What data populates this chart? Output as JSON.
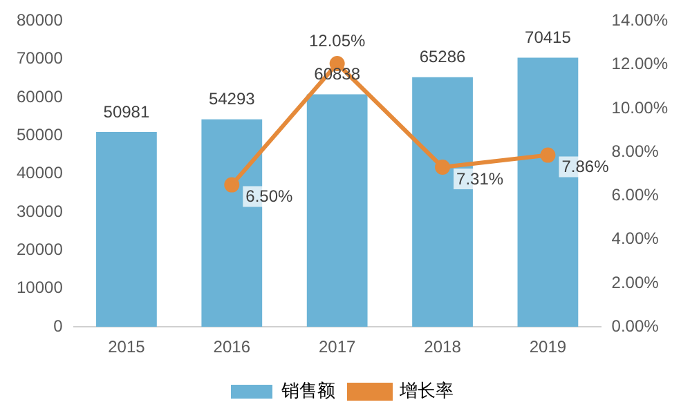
{
  "chart_data": {
    "type": "bar",
    "categories": [
      "2015",
      "2016",
      "2017",
      "2018",
      "2019"
    ],
    "series": [
      {
        "name": "销售额",
        "color": "#6bb3d6",
        "values": [
          50981,
          54293,
          60838,
          65286,
          70415
        ],
        "value_labels": [
          "50981",
          "54293",
          "60838",
          "65286",
          "70415"
        ]
      },
      {
        "name": "增长率",
        "type": "line",
        "axis": "y2",
        "color": "#e58a3a",
        "values": [
          null,
          6.5,
          12.05,
          7.31,
          7.86
        ],
        "value_labels": [
          null,
          "6.50%",
          "12.05%",
          "7.31%",
          "7.86%"
        ]
      }
    ],
    "ylim": [
      0,
      80000
    ],
    "yticks": [
      0,
      10000,
      20000,
      30000,
      40000,
      50000,
      60000,
      70000,
      80000
    ],
    "y2lim": [
      0,
      14
    ],
    "y2ticks": [
      {
        "value": 0,
        "label": "0.00%"
      },
      {
        "value": 2,
        "label": "2.00%"
      },
      {
        "value": 4,
        "label": "4.00%"
      },
      {
        "value": 6,
        "label": "6.00%"
      },
      {
        "value": 8,
        "label": "8.00%"
      },
      {
        "value": 10,
        "label": "10.00%"
      },
      {
        "value": 12,
        "label": "12.00%"
      },
      {
        "value": 14,
        "label": "14.00%"
      }
    ],
    "grid": false,
    "legend": "bottom",
    "marker": "circle"
  }
}
